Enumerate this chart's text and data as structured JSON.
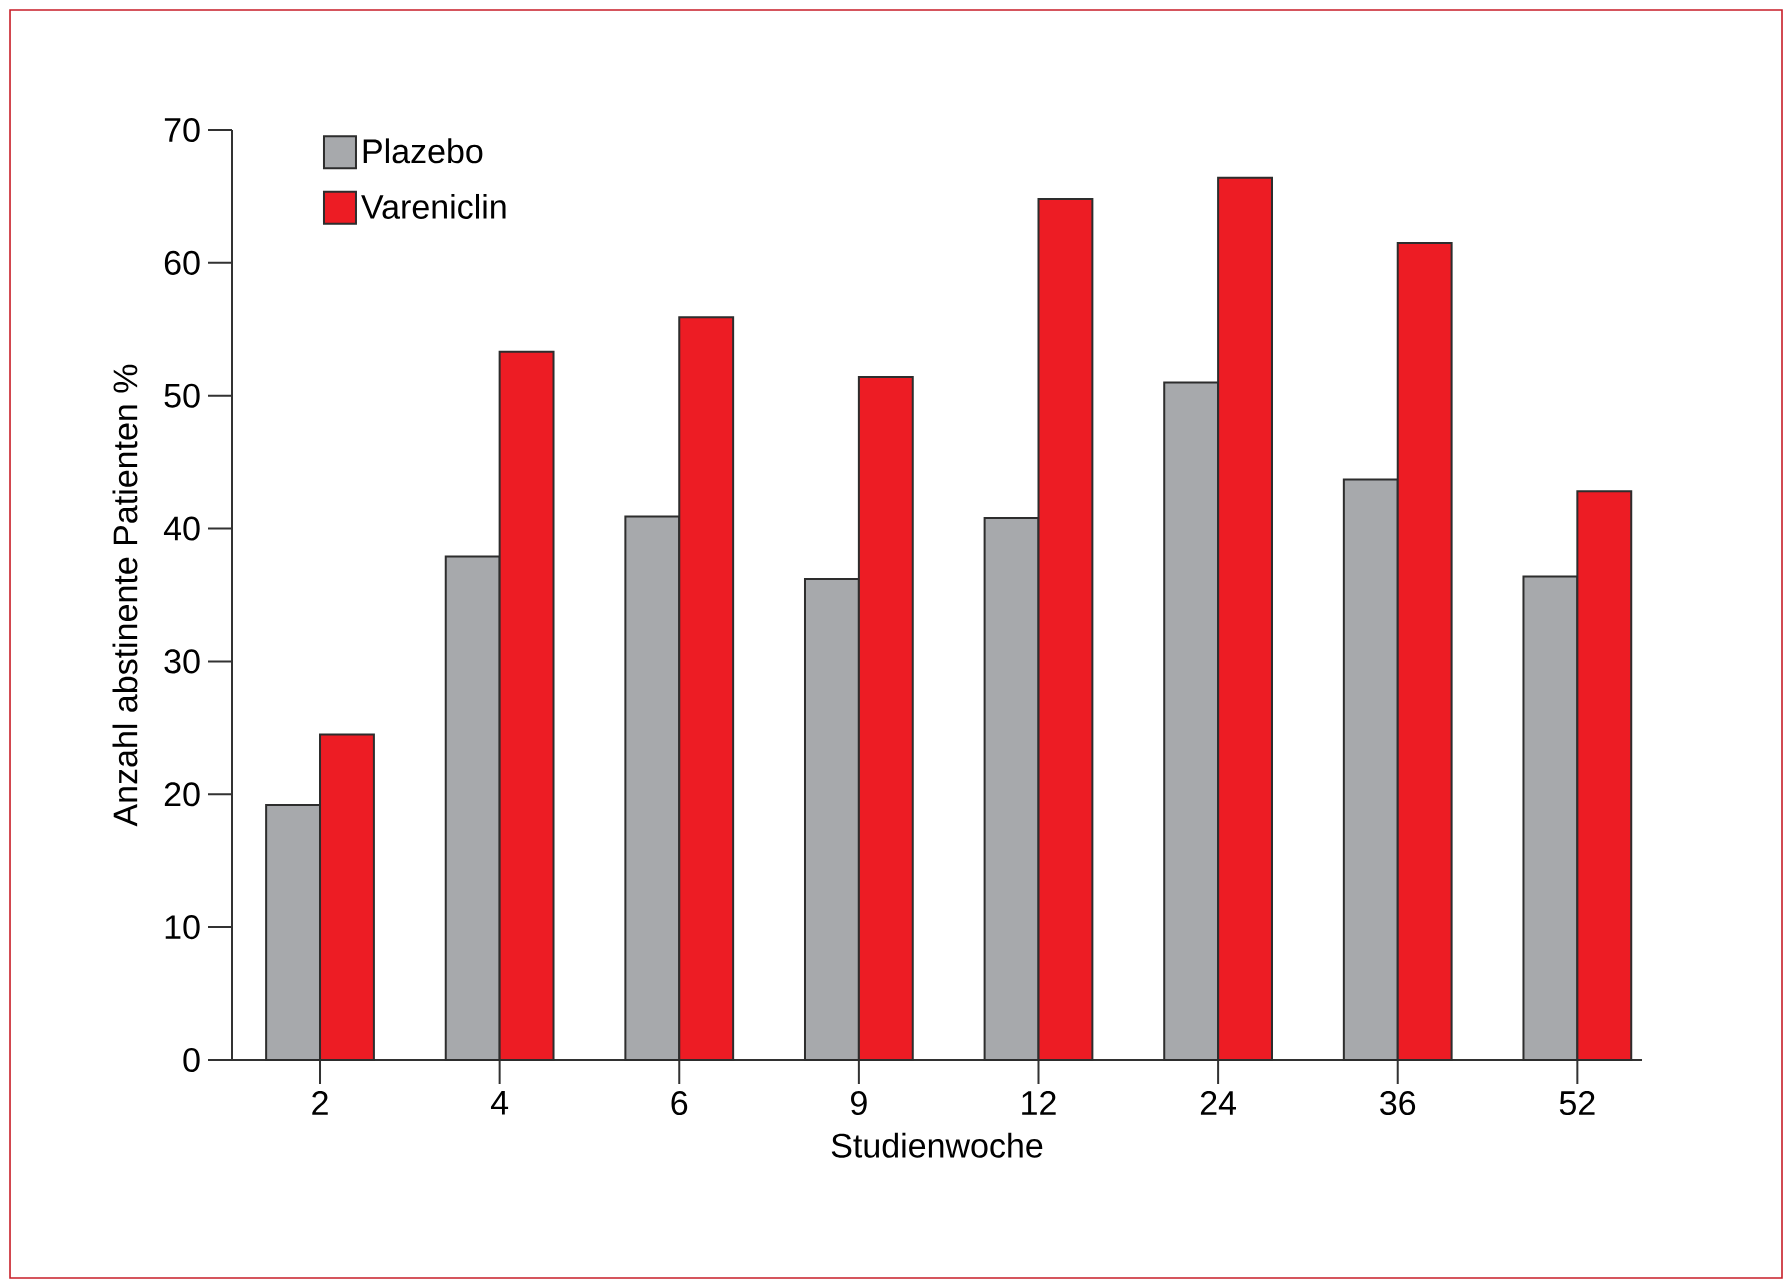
{
  "chart_data": {
    "type": "bar",
    "xlabel": "Studienwoche",
    "ylabel": "Anzahl abstinente Patienten %",
    "categories": [
      "2",
      "4",
      "6",
      "9",
      "12",
      "24",
      "36",
      "52"
    ],
    "series": [
      {
        "name": "Plazebo",
        "color": "#a7a9ac",
        "values": [
          19.2,
          37.9,
          40.9,
          36.2,
          40.8,
          51.0,
          43.7,
          36.4
        ]
      },
      {
        "name": "Vareniclin",
        "color": "#ed1c24",
        "values": [
          24.5,
          53.3,
          55.9,
          51.4,
          64.8,
          66.4,
          61.5,
          42.8
        ]
      }
    ],
    "ylim": [
      0,
      70
    ],
    "yticks": [
      0,
      10,
      20,
      30,
      40,
      50,
      60,
      70
    ],
    "legend": "top left"
  }
}
